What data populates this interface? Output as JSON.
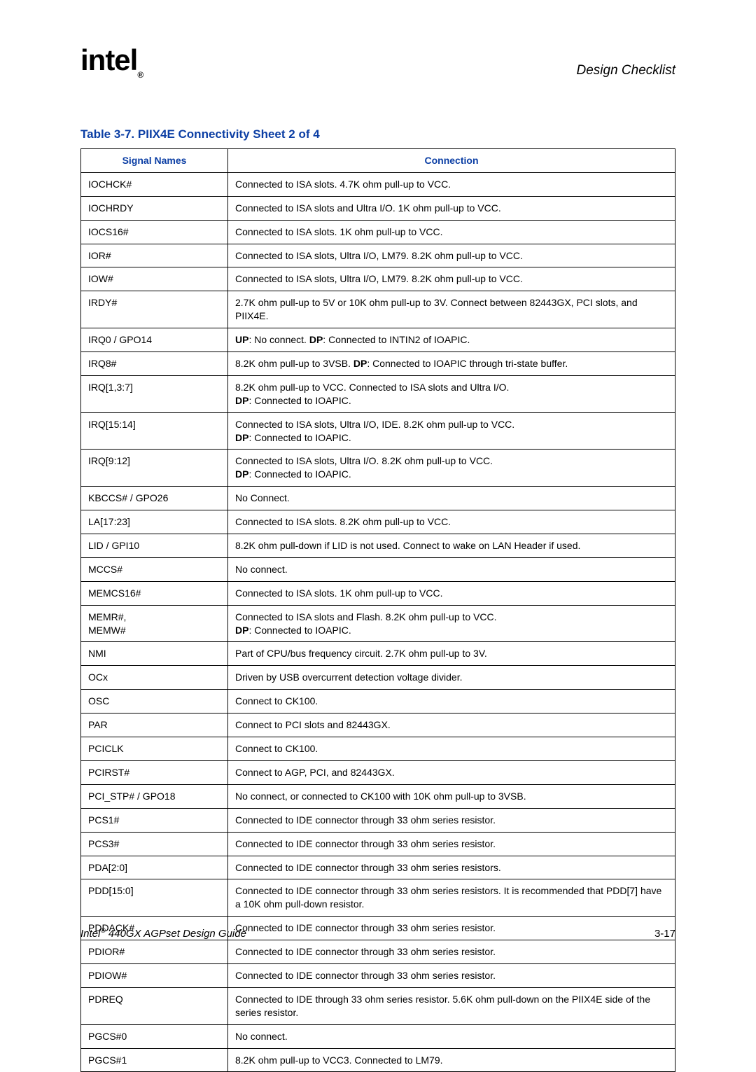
{
  "header": {
    "logo_text": "intel",
    "reg_mark": "®",
    "section": "Design Checklist"
  },
  "caption": "Table 3-7. PIIX4E Connectivity Sheet 2 of 4",
  "columns": {
    "c1": "Signal Names",
    "c2": "Connection"
  },
  "rows": [
    {
      "sig": "IOCHCK#",
      "conn": [
        {
          "t": "Connected to ISA slots. 4.7K ohm pull-up to VCC."
        }
      ]
    },
    {
      "sig": "IOCHRDY",
      "conn": [
        {
          "t": "Connected to ISA slots and Ultra I/O. 1K ohm pull-up to VCC."
        }
      ]
    },
    {
      "sig": "IOCS16#",
      "conn": [
        {
          "t": "Connected to ISA slots. 1K ohm pull-up to VCC."
        }
      ]
    },
    {
      "sig": "IOR#",
      "conn": [
        {
          "t": "Connected to ISA slots, Ultra I/O, LM79. 8.2K ohm pull-up to VCC."
        }
      ]
    },
    {
      "sig": "IOW#",
      "conn": [
        {
          "t": "Connected to ISA slots, Ultra I/O, LM79. 8.2K ohm pull-up to VCC."
        }
      ]
    },
    {
      "sig": "IRDY#",
      "conn": [
        {
          "t": "2.7K ohm pull-up to 5V or 10K ohm pull-up to 3V. Connect between 82443GX, PCI slots, and PIIX4E."
        }
      ]
    },
    {
      "sig": "IRQ0 / GPO14",
      "conn": [
        {
          "b": "UP",
          "t": ": No connect. "
        },
        {
          "b": "DP",
          "t": ": Connected to INTIN2 of IOAPIC."
        }
      ]
    },
    {
      "sig": "IRQ8#",
      "conn": [
        {
          "t": "8.2K ohm pull-up to 3VSB. "
        },
        {
          "b": "DP",
          "t": ": Connected to IOAPIC through tri-state buffer."
        }
      ]
    },
    {
      "sig": "IRQ[1,3:7]",
      "conn": [
        {
          "t": "8.2K ohm pull-up to VCC. Connected to ISA slots and Ultra I/O."
        },
        {
          "br": true
        },
        {
          "b": "DP",
          "t": ": Connected to IOAPIC."
        }
      ]
    },
    {
      "sig": "IRQ[15:14]",
      "conn": [
        {
          "t": "Connected to ISA slots, Ultra I/O, IDE. 8.2K ohm pull-up to VCC."
        },
        {
          "br": true
        },
        {
          "b": "DP",
          "t": ": Connected to IOAPIC."
        }
      ]
    },
    {
      "sig": "IRQ[9:12]",
      "conn": [
        {
          "t": "Connected to ISA slots, Ultra I/O. 8.2K ohm pull-up to VCC."
        },
        {
          "br": true
        },
        {
          "b": "DP",
          "t": ": Connected to IOAPIC."
        }
      ]
    },
    {
      "sig": "KBCCS# / GPO26",
      "conn": [
        {
          "t": "No Connect."
        }
      ]
    },
    {
      "sig": "LA[17:23]",
      "conn": [
        {
          "t": "Connected to ISA slots. 8.2K ohm pull-up to VCC."
        }
      ]
    },
    {
      "sig": "LID / GPI10",
      "conn": [
        {
          "t": "8.2K ohm pull-down if LID is not used. Connect to wake on LAN Header if used."
        }
      ]
    },
    {
      "sig": "MCCS#",
      "conn": [
        {
          "t": "No connect."
        }
      ]
    },
    {
      "sig": "MEMCS16#",
      "conn": [
        {
          "t": "Connected to ISA slots. 1K ohm pull-up to VCC."
        }
      ]
    },
    {
      "sig": "MEMR#,\nMEMW#",
      "conn": [
        {
          "t": "Connected to ISA slots and Flash. 8.2K ohm pull-up to VCC."
        },
        {
          "br": true
        },
        {
          "b": "DP",
          "t": ": Connected to IOAPIC."
        }
      ]
    },
    {
      "sig": "NMI",
      "conn": [
        {
          "t": "Part of CPU/bus frequency circuit. 2.7K ohm pull-up to 3V."
        }
      ]
    },
    {
      "sig": "OCx",
      "conn": [
        {
          "t": "Driven by USB overcurrent detection voltage divider."
        }
      ]
    },
    {
      "sig": "OSC",
      "conn": [
        {
          "t": "Connect to CK100."
        }
      ]
    },
    {
      "sig": "PAR",
      "conn": [
        {
          "t": "Connect to PCI slots and 82443GX."
        }
      ]
    },
    {
      "sig": "PCICLK",
      "conn": [
        {
          "t": "Connect to CK100."
        }
      ]
    },
    {
      "sig": "PCIRST#",
      "conn": [
        {
          "t": "Connect to AGP, PCI, and 82443GX."
        }
      ]
    },
    {
      "sig": "PCI_STP# / GPO18",
      "conn": [
        {
          "t": "No connect, or connected to CK100 with 10K ohm pull-up to 3VSB."
        }
      ]
    },
    {
      "sig": "PCS1#",
      "conn": [
        {
          "t": "Connected to IDE connector through 33 ohm series resistor."
        }
      ]
    },
    {
      "sig": "PCS3#",
      "conn": [
        {
          "t": "Connected to IDE connector through 33 ohm series resistor."
        }
      ]
    },
    {
      "sig": "PDA[2:0]",
      "conn": [
        {
          "t": "Connected to IDE connector through 33 ohm series resistors."
        }
      ]
    },
    {
      "sig": "PDD[15:0]",
      "conn": [
        {
          "t": "Connected to IDE connector through 33 ohm series resistors. It is recommended that PDD[7] have a 10K ohm pull-down resistor."
        }
      ]
    },
    {
      "sig": "PDDACK#",
      "conn": [
        {
          "t": "Connected to IDE connector through 33 ohm series resistor."
        }
      ]
    },
    {
      "sig": "PDIOR#",
      "conn": [
        {
          "t": "Connected to IDE connector through 33 ohm series resistor."
        }
      ]
    },
    {
      "sig": "PDIOW#",
      "conn": [
        {
          "t": "Connected to IDE connector through 33 ohm series resistor."
        }
      ]
    },
    {
      "sig": "PDREQ",
      "conn": [
        {
          "t": "Connected to IDE through 33 ohm series resistor. 5.6K ohm pull-down on the PIIX4E side of the series resistor."
        }
      ]
    },
    {
      "sig": "PGCS#0",
      "conn": [
        {
          "t": "No connect."
        }
      ]
    },
    {
      "sig": "PGCS#1",
      "conn": [
        {
          "t": "8.2K ohm pull-up to VCC3. Connected to LM79."
        }
      ]
    }
  ],
  "footer": {
    "title_prefix": "Intel",
    "reg_mark": "®",
    "title_rest": " 440GX AGPset Design Guide",
    "page": "3-17"
  }
}
